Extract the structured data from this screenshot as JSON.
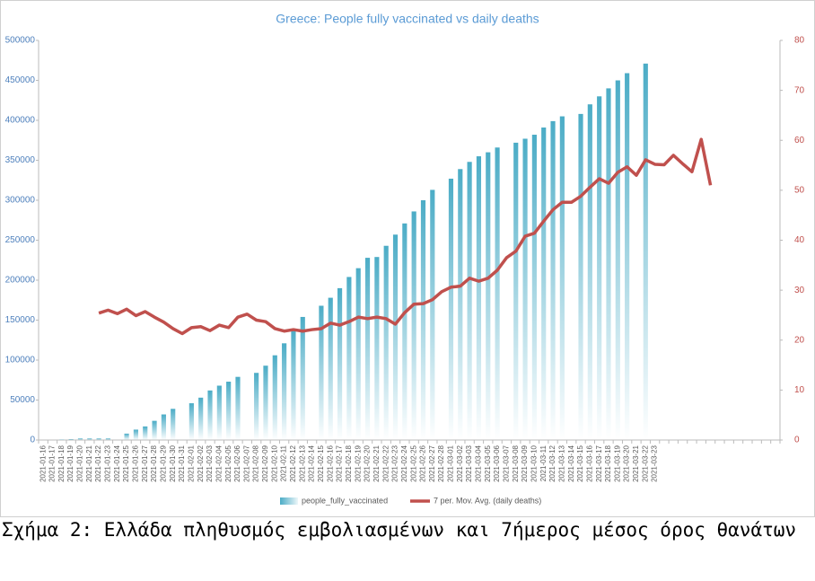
{
  "chart_data": {
    "type": "bar_line",
    "title": "Greece: People fully vaccinated vs daily deaths",
    "categories": [
      "2021-01-16",
      "2021-01-17",
      "2021-01-18",
      "2021-01-19",
      "2021-01-20",
      "2021-01-21",
      "2021-01-22",
      "2021-01-23",
      "2021-01-24",
      "2021-01-25",
      "2021-01-26",
      "2021-01-27",
      "2021-01-28",
      "2021-01-29",
      "2021-01-30",
      "2021-01-31",
      "2021-02-01",
      "2021-02-02",
      "2021-02-03",
      "2021-02-04",
      "2021-02-05",
      "2021-02-06",
      "2021-02-07",
      "2021-02-08",
      "2021-02-09",
      "2021-02-10",
      "2021-02-11",
      "2021-02-12",
      "2021-02-13",
      "2021-02-14",
      "2021-02-15",
      "2021-02-16",
      "2021-02-17",
      "2021-02-18",
      "2021-02-19",
      "2021-02-20",
      "2021-02-21",
      "2021-02-22",
      "2021-02-23",
      "2021-02-24",
      "2021-02-25",
      "2021-02-26",
      "2021-02-27",
      "2021-02-28",
      "2021-03-01",
      "2021-03-02",
      "2021-03-03",
      "2021-03-04",
      "2021-03-05",
      "2021-03-06",
      "2021-03-07",
      "2021-03-08",
      "2021-03-09",
      "2021-03-10",
      "2021-03-11",
      "2021-03-12",
      "2021-03-13",
      "2021-03-14",
      "2021-03-15",
      "2021-03-16",
      "2021-03-17",
      "2021-03-18",
      "2021-03-19",
      "2021-03-20",
      "2021-03-21",
      "2021-03-22",
      "2021-03-23",
      null,
      null,
      null,
      null,
      null,
      null,
      null,
      null,
      null,
      null,
      null,
      null,
      null
    ],
    "series": [
      {
        "name": "people_fully_vaccinated",
        "type": "bar",
        "color": "#4bacc6",
        "values": [
          0,
          0,
          500,
          1000,
          2000,
          2000,
          2000,
          2000,
          null,
          8000,
          13000,
          17000,
          24000,
          32000,
          39000,
          null,
          46000,
          53000,
          62000,
          68000,
          73000,
          79000,
          null,
          84000,
          93000,
          106000,
          121000,
          138000,
          154000,
          null,
          168000,
          178000,
          190000,
          204000,
          215000,
          228000,
          229000,
          243000,
          257000,
          271000,
          286000,
          300000,
          313000,
          null,
          327000,
          339000,
          348000,
          355000,
          360000,
          366000,
          null,
          372000,
          377000,
          382000,
          391000,
          399000,
          405000,
          null,
          408000,
          420000,
          430000,
          440000,
          450000,
          459000,
          null,
          471000,
          null,
          null,
          null,
          null,
          null,
          null,
          null,
          null,
          null,
          null,
          null,
          null,
          null,
          null
        ]
      },
      {
        "name": "7 per. Mov. Avg. (daily deaths)",
        "type": "line",
        "axis": "y2",
        "color": "#c0504d",
        "values": [
          null,
          null,
          null,
          null,
          null,
          null,
          25.4,
          26,
          25.3,
          26.2,
          24.9,
          25.7,
          24.6,
          23.6,
          22.3,
          21.3,
          22.5,
          22.7,
          21.9,
          23,
          22.5,
          24.6,
          25.2,
          24,
          23.7,
          22.3,
          21.8,
          22.1,
          21.8,
          22.1,
          22.3,
          23.4,
          23,
          23.7,
          24.6,
          24.3,
          24.6,
          24.3,
          23.2,
          25.5,
          27.2,
          27.3,
          28.1,
          29.7,
          30.6,
          30.8,
          32.4,
          31.8,
          32.4,
          34,
          36.5,
          37.8,
          40.8,
          41.4,
          43.8,
          46.1,
          47.6,
          47.6,
          48.8,
          50.6,
          52.3,
          51.4,
          53.6,
          54.7,
          53,
          56.1,
          55.2,
          55.1,
          57,
          55.3,
          53.7,
          60.2,
          51,
          null,
          null,
          null,
          null,
          null,
          null,
          null
        ]
      }
    ],
    "ylim": [
      0,
      500000
    ],
    "yticks": [
      0,
      50000,
      100000,
      150000,
      200000,
      250000,
      300000,
      350000,
      400000,
      450000,
      500000
    ],
    "y2lim": [
      0,
      80
    ],
    "y2ticks": [
      0,
      10,
      20,
      30,
      40,
      50,
      60,
      70,
      80
    ],
    "grid": false,
    "legend": "bottom"
  },
  "caption": "Σχήμα 2: Ελλάδα πληθυσμός εμβολιασμένων και 7ήμερος μέσος όρος θανάτων"
}
